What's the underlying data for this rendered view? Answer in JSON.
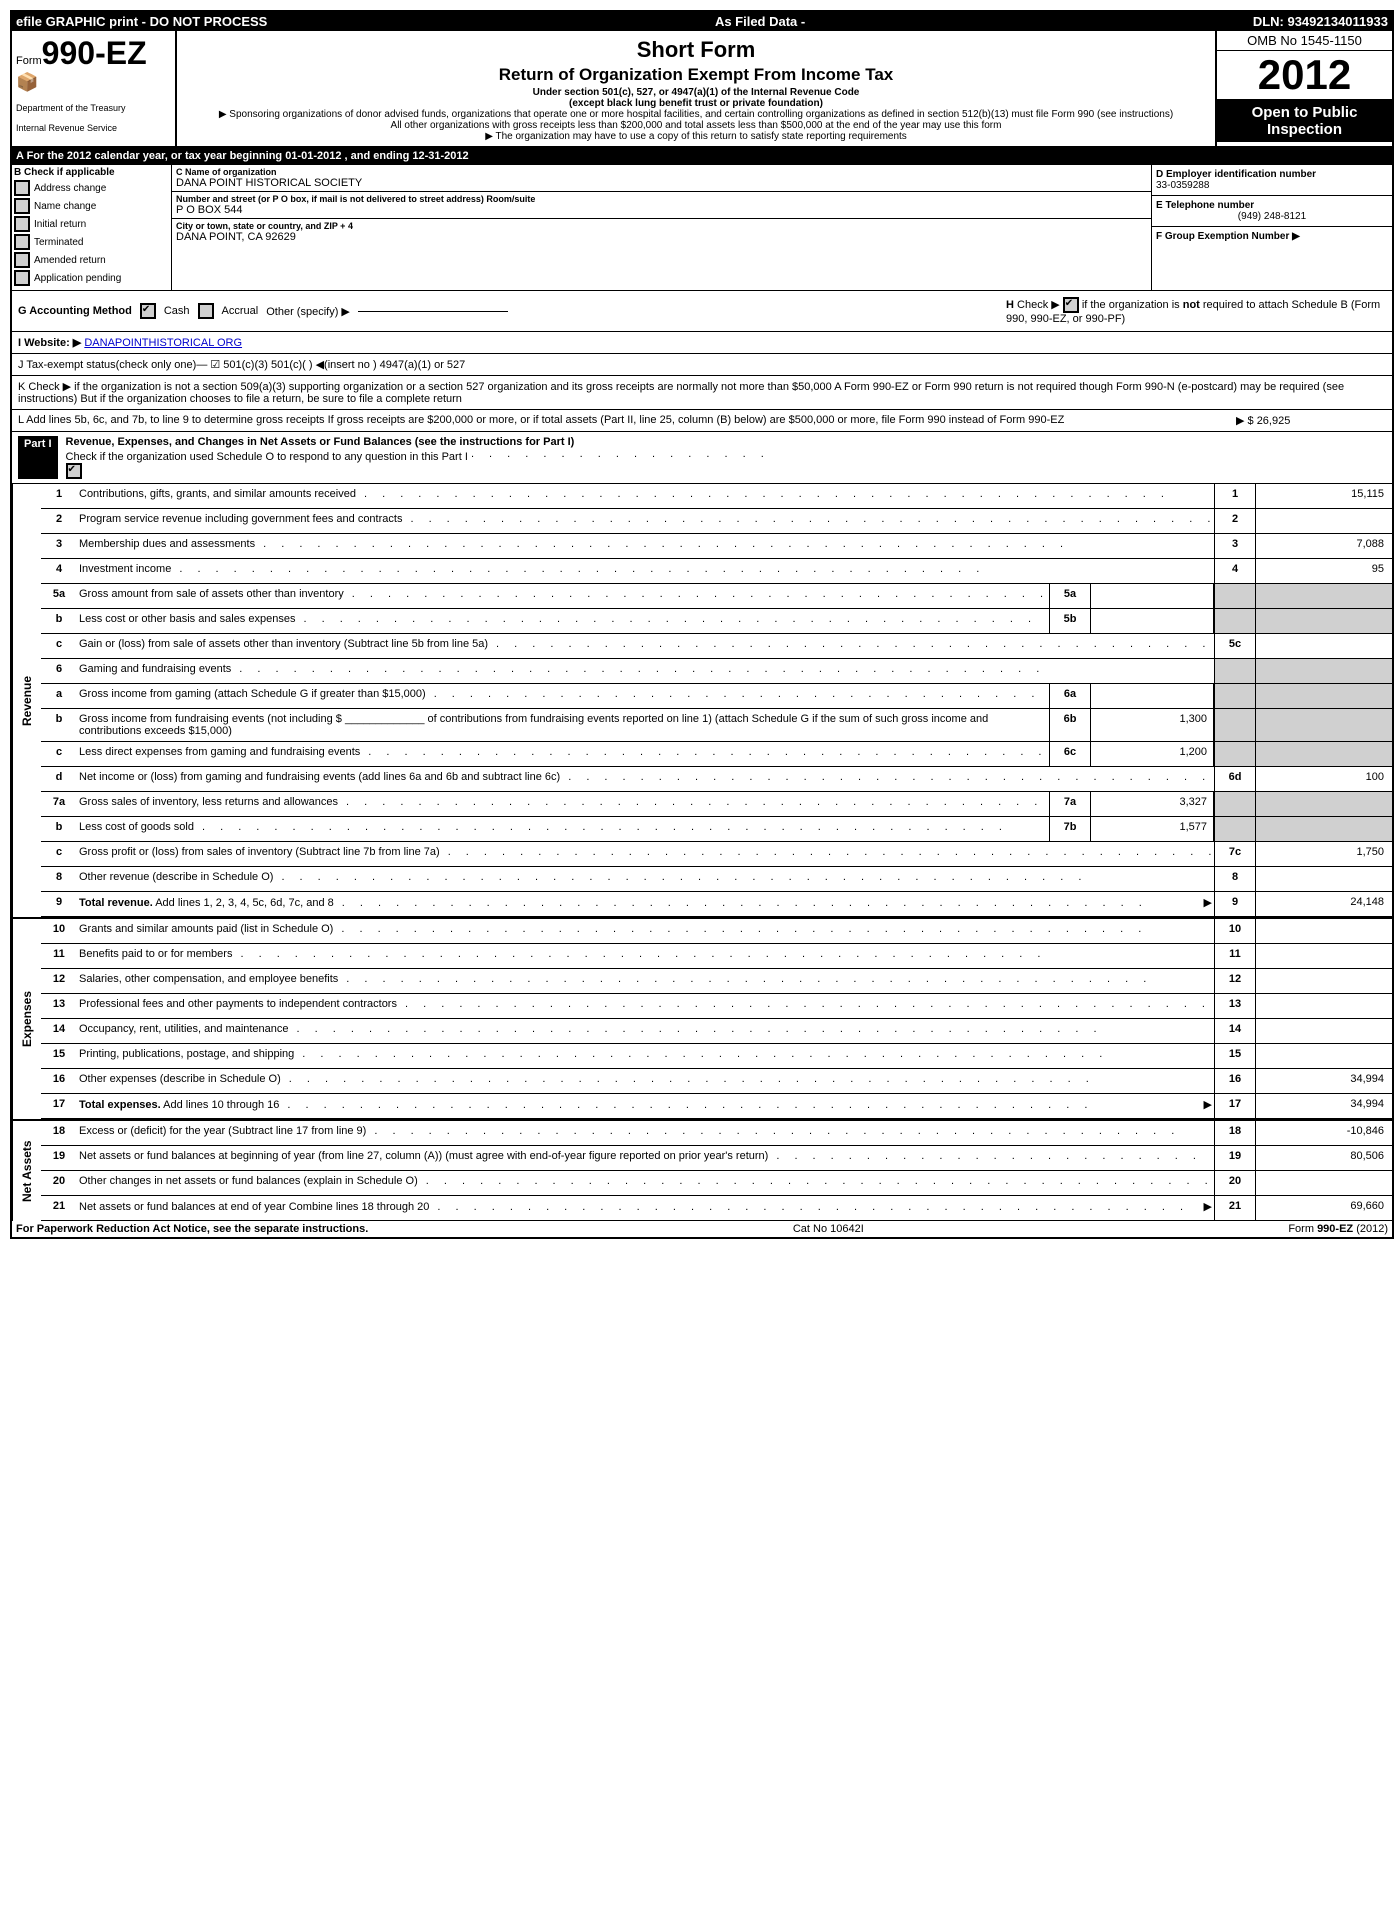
{
  "topbar": {
    "left": "efile GRAPHIC print - DO NOT PROCESS",
    "center": "As Filed Data -",
    "right": "DLN: 93492134011933"
  },
  "header": {
    "form_prefix": "Form",
    "form_number": "990-EZ",
    "dept1": "Department of the Treasury",
    "dept2": "Internal Revenue Service",
    "title1": "Short Form",
    "title2": "Return of Organization Exempt From Income Tax",
    "subtitle1": "Under section 501(c), 527, or 4947(a)(1) of the Internal Revenue Code",
    "subtitle2": "(except black lung benefit trust or private foundation)",
    "note1": "▶ Sponsoring organizations of donor advised funds, organizations that operate one or more hospital facilities, and certain controlling organizations as defined in section 512(b)(13) must file Form 990 (see instructions)",
    "note2": "All other organizations with gross receipts less than $200,000 and total assets less than $500,000 at the end of the year may use this form",
    "note3": "▶ The organization may have to use a copy of this return to satisfy state reporting requirements",
    "omb": "OMB No 1545-1150",
    "year": "2012",
    "open1": "Open to Public",
    "open2": "Inspection"
  },
  "sectionA": "A  For the 2012 calendar year, or tax year beginning 01-01-2012          , and ending 12-31-2012",
  "sectionB": {
    "header": "B  Check if applicable",
    "items": [
      "Address change",
      "Name change",
      "Initial return",
      "Terminated",
      "Amended return",
      "Application pending"
    ]
  },
  "sectionC": {
    "c_lbl": "C Name of organization",
    "c_val": "DANA POINT HISTORICAL SOCIETY",
    "addr_lbl": "Number and street (or P O box, if mail is not delivered to street address) Room/suite",
    "addr_val": "P O BOX 544",
    "city_lbl": "City or town, state or country, and ZIP + 4",
    "city_val": "DANA POINT, CA  92629"
  },
  "sectionD": {
    "d_lbl": "D Employer identification number",
    "d_val": "33-0359288",
    "e_lbl": "E Telephone number",
    "e_val": "(949) 248-8121",
    "f_lbl": "F Group Exemption Number  ▶"
  },
  "sectionG": {
    "lbl": "G Accounting Method",
    "cash": "Cash",
    "accrual": "Accrual",
    "other": "Other (specify) ▶"
  },
  "sectionH": {
    "text": "H  Check ▶      if the organization is not required to attach Schedule B (Form 990, 990-EZ, or 990-PF)"
  },
  "sectionI": {
    "lbl": "I Website: ▶",
    "val": "DANAPOINTHISTORICAL ORG"
  },
  "sectionJ": "J Tax-exempt status(check only one)—  ☑ 501(c)(3)    501(c)(  ) ◀(insert no )   4947(a)(1) or    527",
  "sectionK": "K Check ▶    if the organization is not a section 509(a)(3) supporting organization or a section 527 organization and its gross receipts are normally not more than $50,000  A Form 990-EZ or Form 990 return is not required though Form 990-N (e-postcard) may be required (see instructions)  But if the organization chooses to file a return, be sure to file a complete return",
  "sectionL": {
    "text": "L Add lines 5b, 6c, and 7b, to line 9 to determine gross receipts  If gross receipts are $200,000 or more, or if total assets (Part II, line 25, column (B) below) are $500,000 or more, file Form 990 instead of Form 990-EZ",
    "val": "▶ $ 26,925"
  },
  "partI": {
    "label": "Part I",
    "title": "Revenue, Expenses, and Changes in Net Assets or Fund Balances (see the instructions for Part I)",
    "note": "Check if the organization used Schedule O to respond to any question in this Part I"
  },
  "sections": {
    "revenue": "Revenue",
    "expenses": "Expenses",
    "netassets": "Net Assets"
  },
  "lines": {
    "l1": {
      "n": "1",
      "d": "Contributions, gifts, grants, and similar amounts received",
      "en": "1",
      "ev": "15,115"
    },
    "l2": {
      "n": "2",
      "d": "Program service revenue including government fees and contracts",
      "en": "2",
      "ev": ""
    },
    "l3": {
      "n": "3",
      "d": "Membership dues and assessments",
      "en": "3",
      "ev": "7,088"
    },
    "l4": {
      "n": "4",
      "d": "Investment income",
      "en": "4",
      "ev": "95"
    },
    "l5a": {
      "n": "5a",
      "d": "Gross amount from sale of assets other than inventory",
      "sn": "5a",
      "sv": ""
    },
    "l5b": {
      "n": "b",
      "d": "Less  cost or other basis and sales expenses",
      "sn": "5b",
      "sv": ""
    },
    "l5c": {
      "n": "c",
      "d": "Gain or (loss) from sale of assets other than inventory (Subtract line 5b from line 5a)",
      "en": "5c",
      "ev": ""
    },
    "l6": {
      "n": "6",
      "d": "Gaming and fundraising events"
    },
    "l6a": {
      "n": "a",
      "d": "Gross income from gaming (attach Schedule G if greater than $15,000)",
      "sn": "6a",
      "sv": ""
    },
    "l6b": {
      "n": "b",
      "d": "Gross income from fundraising events (not including $ _____________ of contributions from fundraising events reported on line 1) (attach Schedule G if the sum of such gross income and contributions exceeds $15,000)",
      "sn": "6b",
      "sv": "1,300"
    },
    "l6c": {
      "n": "c",
      "d": "Less  direct expenses from gaming and fundraising events",
      "sn": "6c",
      "sv": "1,200"
    },
    "l6d": {
      "n": "d",
      "d": "Net income or (loss) from gaming and fundraising events (add lines 6a and 6b and subtract line 6c)",
      "en": "6d",
      "ev": "100"
    },
    "l7a": {
      "n": "7a",
      "d": "Gross sales of inventory, less returns and allowances",
      "sn": "7a",
      "sv": "3,327"
    },
    "l7b": {
      "n": "b",
      "d": "Less  cost of goods sold",
      "sn": "7b",
      "sv": "1,577"
    },
    "l7c": {
      "n": "c",
      "d": "Gross profit or (loss) from sales of inventory (Subtract line 7b from line 7a)",
      "en": "7c",
      "ev": "1,750"
    },
    "l8": {
      "n": "8",
      "d": "Other revenue (describe in Schedule O)",
      "en": "8",
      "ev": ""
    },
    "l9": {
      "n": "9",
      "d": "Total revenue. Add lines 1, 2, 3, 4, 5c, 6d, 7c, and 8",
      "en": "9",
      "ev": "24,148"
    },
    "l10": {
      "n": "10",
      "d": "Grants and similar amounts paid (list in Schedule O)",
      "en": "10",
      "ev": ""
    },
    "l11": {
      "n": "11",
      "d": "Benefits paid to or for members",
      "en": "11",
      "ev": ""
    },
    "l12": {
      "n": "12",
      "d": "Salaries, other compensation, and employee benefits",
      "en": "12",
      "ev": ""
    },
    "l13": {
      "n": "13",
      "d": "Professional fees and other payments to independent contractors",
      "en": "13",
      "ev": ""
    },
    "l14": {
      "n": "14",
      "d": "Occupancy, rent, utilities, and maintenance",
      "en": "14",
      "ev": ""
    },
    "l15": {
      "n": "15",
      "d": "Printing, publications, postage, and shipping",
      "en": "15",
      "ev": ""
    },
    "l16": {
      "n": "16",
      "d": "Other expenses (describe in Schedule O)",
      "en": "16",
      "ev": "34,994"
    },
    "l17": {
      "n": "17",
      "d": "Total expenses. Add lines 10 through 16",
      "en": "17",
      "ev": "34,994"
    },
    "l18": {
      "n": "18",
      "d": "Excess or (deficit) for the year (Subtract line 17 from line 9)",
      "en": "18",
      "ev": "-10,846"
    },
    "l19": {
      "n": "19",
      "d": "Net assets or fund balances at beginning of year (from line 27, column (A)) (must agree with end-of-year figure reported on prior year's return)",
      "en": "19",
      "ev": "80,506"
    },
    "l20": {
      "n": "20",
      "d": "Other changes in net assets or fund balances (explain in Schedule O)",
      "en": "20",
      "ev": ""
    },
    "l21": {
      "n": "21",
      "d": "Net assets or fund balances at end of year  Combine lines 18 through 20",
      "en": "21",
      "ev": "69,660"
    }
  },
  "footer": {
    "left": "For Paperwork Reduction Act Notice, see the separate instructions.",
    "center": "Cat No 10642I",
    "right": "Form 990-EZ (2012)"
  }
}
